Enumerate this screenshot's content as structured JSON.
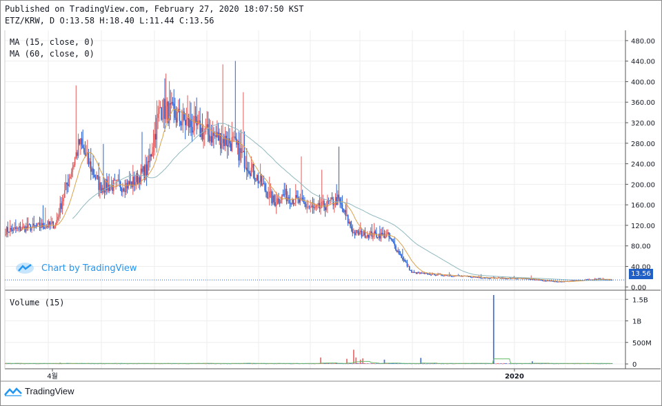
{
  "header": {
    "published": "Published on TradingView.com, February 27, 2020 18:07:50 KST",
    "symbol_line": "ETZ/KRW, D O:13.58 H:18.40 L:11.44 C:13.56"
  },
  "legend": {
    "ma15": "MA (15, close, 0)",
    "ma60": "MA (60, close, 0)",
    "volume": "Volume (15)"
  },
  "watermark": "Chart by TradingView",
  "footer_brand": "TradingView",
  "last_price_label": "13.56",
  "colors": {
    "up": "#e05b5b",
    "down": "#2a5fcf",
    "ma15": "#d9a04a",
    "ma60": "#8fb8bf",
    "vol_ma": "#66bb6a",
    "grid": "#eeeeee",
    "accent": "#2196f3"
  },
  "chart_data": [
    {
      "type": "candlestick",
      "title": "ETZ/KRW, D",
      "ylim": [
        -5,
        500
      ],
      "y_ticks": [
        0,
        40,
        80,
        120,
        160,
        200,
        240,
        280,
        320,
        360,
        400,
        440,
        480
      ],
      "y_tick_labels": [
        "0.00",
        "40.00",
        "80.00",
        "120.00",
        "160.00",
        "200.00",
        "240.00",
        "280.00",
        "320.00",
        "360.00",
        "400.00",
        "440.00",
        "480.00"
      ],
      "x_tick_labels": [
        "4월",
        "2020"
      ],
      "last_price": 13.56,
      "anchors": {
        "days": [
          0,
          44,
          50,
          65,
          83,
          110,
          125,
          136,
          175,
          200,
          236,
          245,
          272,
          292,
          306,
          336,
          357,
          372,
          420,
          454,
          486,
          500,
          520,
          533
        ],
        "close": [
          110,
          122,
          170,
          280,
          195,
          200,
          230,
          350,
          300,
          280,
          165,
          180,
          150,
          170,
          105,
          100,
          28,
          25,
          18,
          16,
          10,
          12,
          16,
          13.56
        ]
      },
      "ma15_window": 15,
      "ma60_window": 60,
      "open": 13.58,
      "high": 18.4,
      "low": 11.44,
      "close": 13.56
    },
    {
      "type": "bar",
      "title": "Volume (15)",
      "ylim": [
        0,
        1600000000
      ],
      "y_tick_labels": [
        "0",
        "500M",
        "1B",
        "1.5B"
      ],
      "spikes_days": [
        48,
        277,
        300,
        306,
        308,
        312,
        314,
        333,
        365,
        429,
        463
      ],
      "spikes_values": [
        30000000,
        150000000,
        120000000,
        330000000,
        150000000,
        100000000,
        130000000,
        100000000,
        140000000,
        1600000000,
        60000000
      ]
    }
  ]
}
